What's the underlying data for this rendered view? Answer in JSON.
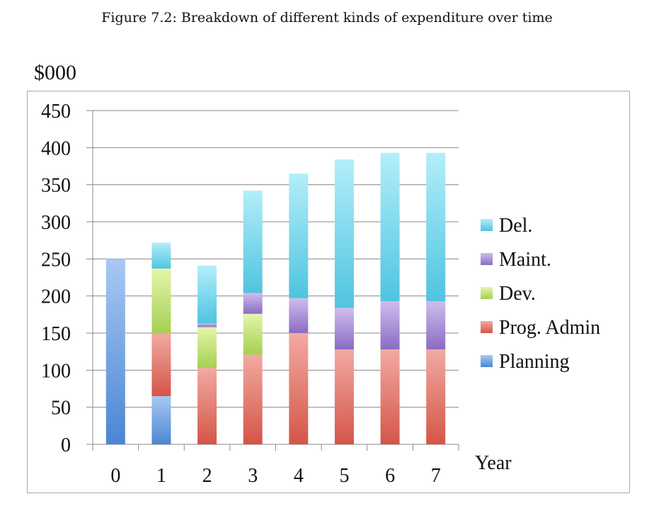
{
  "figure": {
    "caption": "Figure 7.2: Breakdown of different kinds of expenditure over time",
    "unit_label": "$000"
  },
  "chart_data": {
    "type": "bar",
    "stacked": true,
    "categories": [
      "0",
      "1",
      "2",
      "3",
      "4",
      "5",
      "6",
      "7"
    ],
    "xlabel": "Year",
    "ylabel": "$000",
    "ylim": [
      0,
      450
    ],
    "yticks": [
      0,
      50,
      100,
      150,
      200,
      250,
      300,
      350,
      400,
      450
    ],
    "grid": true,
    "legend_position": "right",
    "series": [
      {
        "name": "Planning",
        "color_light": "#a9c8f2",
        "color_dark": "#4b86d4",
        "values": [
          250,
          65,
          0,
          0,
          0,
          0,
          0,
          0
        ]
      },
      {
        "name": "Prog. Admin",
        "color_light": "#f2aaa2",
        "color_dark": "#d45547",
        "values": [
          0,
          85,
          103,
          121,
          150,
          128,
          128,
          128
        ]
      },
      {
        "name": "Dev.",
        "color_light": "#e4f5ac",
        "color_dark": "#a6cf52",
        "values": [
          0,
          87,
          55,
          55,
          0,
          0,
          0,
          0
        ]
      },
      {
        "name": "Maint.",
        "color_light": "#cfbdee",
        "color_dark": "#8a6cc2",
        "values": [
          0,
          0,
          5,
          28,
          47,
          56,
          65,
          65
        ]
      },
      {
        "name": "Del.",
        "color_light": "#b3eefa",
        "color_dark": "#4fc4e0",
        "values": [
          0,
          35,
          78,
          138,
          168,
          200,
          200,
          200
        ]
      }
    ]
  }
}
